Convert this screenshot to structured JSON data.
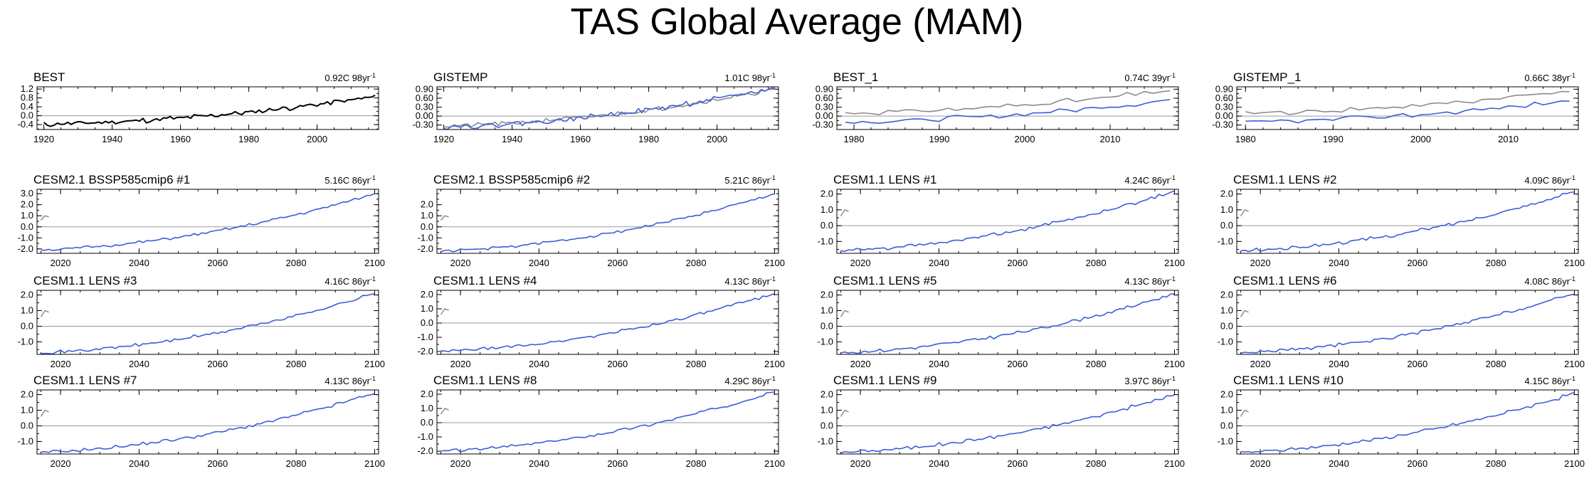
{
  "page": {
    "title": "TAS Global Average (MAM)"
  },
  "colors": {
    "obs": "#000000",
    "model": "#3b5fd8",
    "obsRef": "#8c8c8c",
    "zero": "#999999",
    "axis": "#000000"
  },
  "chart_data": [
    {
      "type": "line",
      "title": "BEST",
      "trend": "0.92C 98yr",
      "trend_unit": "-1",
      "xlim": [
        1918,
        2018
      ],
      "ylim": [
        -0.62,
        1.3
      ],
      "xticks": [
        1920,
        1940,
        1960,
        1980,
        2000
      ],
      "yticks": [
        -0.4,
        0.0,
        0.4,
        0.8,
        1.2
      ],
      "ytick_labels": [
        "-0.4",
        "0.0",
        "0.4",
        "0.8",
        "1.2"
      ],
      "series": [
        {
          "name": "BEST",
          "color": "#000000",
          "x_start": 1920,
          "x_end": 2017,
          "y_start": -0.38,
          "y_end": 0.86,
          "seed": 11,
          "noise": 0.09
        }
      ]
    },
    {
      "type": "line",
      "title": "GISTEMP",
      "trend": "1.01C 98yr",
      "trend_unit": "-1",
      "xlim": [
        1918,
        2018
      ],
      "ylim": [
        -0.45,
        0.98
      ],
      "xticks": [
        1920,
        1940,
        1960,
        1980,
        2000
      ],
      "yticks": [
        -0.3,
        0.0,
        0.3,
        0.6,
        0.9
      ],
      "ytick_labels": [
        "-0.30",
        "0.00",
        "0.30",
        "0.60",
        "0.90"
      ],
      "series": [
        {
          "name": "BEST",
          "color": "#8c8c8c",
          "x_start": 1920,
          "x_end": 2017,
          "y_start": -0.33,
          "y_end": 0.9,
          "seed": 21,
          "noise": 0.06
        },
        {
          "name": "GISTEMP",
          "color": "#3b5fd8",
          "x_start": 1920,
          "x_end": 2017,
          "y_start": -0.36,
          "y_end": 0.95,
          "seed": 22,
          "noise": 0.07
        }
      ]
    },
    {
      "type": "line",
      "title": "BEST_1",
      "trend": "0.74C 39yr",
      "trend_unit": "-1",
      "xlim": [
        1978,
        2018
      ],
      "ylim": [
        -0.45,
        0.98
      ],
      "xticks": [
        1980,
        1990,
        2000,
        2010
      ],
      "yticks": [
        -0.3,
        0.0,
        0.3,
        0.6,
        0.9
      ],
      "ytick_labels": [
        "-0.30",
        "0.00",
        "0.30",
        "0.60",
        "0.90"
      ],
      "series": [
        {
          "name": "BEST",
          "color": "#8c8c8c",
          "x_start": 1979,
          "x_end": 2017,
          "y_start": 0.1,
          "y_end": 0.86,
          "seed": 31,
          "noise": 0.07
        },
        {
          "name": "BEST_1",
          "color": "#3b5fd8",
          "x_start": 1979,
          "x_end": 2017,
          "y_start": -0.2,
          "y_end": 0.55,
          "seed": 32,
          "noise": 0.07
        }
      ]
    },
    {
      "type": "line",
      "title": "GISTEMP_1",
      "trend": "0.66C 38yr",
      "trend_unit": "-1",
      "xlim": [
        1979,
        2018
      ],
      "ylim": [
        -0.45,
        0.98
      ],
      "xticks": [
        1980,
        1990,
        2000,
        2010
      ],
      "yticks": [
        -0.3,
        0.0,
        0.3,
        0.6,
        0.9
      ],
      "ytick_labels": [
        "-0.30",
        "0.00",
        "0.30",
        "0.60",
        "0.90"
      ],
      "series": [
        {
          "name": "GISTEMP",
          "color": "#8c8c8c",
          "x_start": 1980,
          "x_end": 2017,
          "y_start": 0.1,
          "y_end": 0.86,
          "seed": 41,
          "noise": 0.07
        },
        {
          "name": "GISTEMP_1",
          "color": "#3b5fd8",
          "x_start": 1980,
          "x_end": 2017,
          "y_start": -0.2,
          "y_end": 0.52,
          "seed": 42,
          "noise": 0.07
        }
      ]
    },
    {
      "type": "line",
      "title": "CESM2.1 BSSP585cmip6 #1",
      "trend": "5.16C 86yr",
      "trend_unit": "-1",
      "xlim": [
        2014,
        2101
      ],
      "ylim": [
        -2.4,
        3.4
      ],
      "xticks": [
        2020,
        2040,
        2060,
        2080,
        2100
      ],
      "yticks": [
        -2.0,
        -1.0,
        0.0,
        1.0,
        2.0,
        3.0
      ],
      "ytick_labels": [
        "-2.0",
        "-1.0",
        "0.0",
        "1.0",
        "2.0",
        "3.0"
      ],
      "ref_series": [
        {
          "color": "#8c8c8c",
          "x": [
            2015,
            2016,
            2017
          ],
          "y": [
            0.6,
            1.0,
            0.9
          ]
        }
      ],
      "series": [
        {
          "name": "CESM2.1 BSSP585cmip6 #1",
          "color": "#3b5fd8",
          "x_start": 2015,
          "x_end": 2100,
          "y_start": -2.1,
          "y_end": 3.0,
          "seed": 51,
          "noise": 0.1
        }
      ]
    },
    {
      "type": "line",
      "title": "CESM2.1 BSSP585cmip6 #2",
      "trend": "5.21C 86yr",
      "trend_unit": "-1",
      "xlim": [
        2014,
        2101
      ],
      "ylim": [
        -2.4,
        3.4
      ],
      "xticks": [
        2020,
        2040,
        2060,
        2080,
        2100
      ],
      "yticks": [
        -2.0,
        -1.0,
        0.0,
        1.0,
        2.0
      ],
      "ytick_labels": [
        "-2.0",
        "-1.0",
        "0.0",
        "1.0",
        "2.0"
      ],
      "ref_series": [
        {
          "color": "#8c8c8c",
          "x": [
            2015,
            2016,
            2017
          ],
          "y": [
            0.6,
            1.0,
            0.9
          ]
        }
      ],
      "series": [
        {
          "name": "CESM2.1 BSSP585cmip6 #2",
          "color": "#3b5fd8",
          "x_start": 2015,
          "x_end": 2100,
          "y_start": -2.2,
          "y_end": 3.0,
          "seed": 52,
          "noise": 0.1
        }
      ]
    },
    {
      "type": "line",
      "title": "CESM1.1 LENS #1",
      "trend": "4.24C 86yr",
      "trend_unit": "-1",
      "xlim": [
        2014,
        2101
      ],
      "ylim": [
        -1.75,
        2.3
      ],
      "xticks": [
        2020,
        2040,
        2060,
        2080,
        2100
      ],
      "yticks": [
        -1.0,
        0.0,
        1.0,
        2.0
      ],
      "ytick_labels": [
        "-1.0",
        "0.0",
        "1.0",
        "2.0"
      ],
      "ref_series": [
        {
          "color": "#8c8c8c",
          "x": [
            2015,
            2016,
            2017
          ],
          "y": [
            0.6,
            1.0,
            0.9
          ]
        }
      ],
      "series": [
        {
          "name": "CESM1.1 LENS #1",
          "color": "#3b5fd8",
          "x_start": 2015,
          "x_end": 2100,
          "y_start": -1.6,
          "y_end": 2.2,
          "seed": 61,
          "noise": 0.09
        }
      ]
    },
    {
      "type": "line",
      "title": "CESM1.1 LENS #2",
      "trend": "4.09C 86yr",
      "trend_unit": "-1",
      "xlim": [
        2014,
        2101
      ],
      "ylim": [
        -1.75,
        2.3
      ],
      "xticks": [
        2020,
        2040,
        2060,
        2080,
        2100
      ],
      "yticks": [
        -1.0,
        0.0,
        1.0,
        2.0
      ],
      "ytick_labels": [
        "-1.0",
        "0.0",
        "1.0",
        "2.0"
      ],
      "ref_series": [
        {
          "color": "#8c8c8c",
          "x": [
            2015,
            2016,
            2017
          ],
          "y": [
            0.6,
            1.0,
            0.9
          ]
        }
      ],
      "series": [
        {
          "name": "CESM1.1 LENS #2",
          "color": "#3b5fd8",
          "x_start": 2015,
          "x_end": 2100,
          "y_start": -1.6,
          "y_end": 2.15,
          "seed": 62,
          "noise": 0.09
        }
      ]
    },
    {
      "type": "line",
      "title": "CESM1.1 LENS #3",
      "trend": "4.16C 86yr",
      "trend_unit": "-1",
      "xlim": [
        2014,
        2101
      ],
      "ylim": [
        -1.8,
        2.3
      ],
      "xticks": [
        2020,
        2040,
        2060,
        2080,
        2100
      ],
      "yticks": [
        -1.0,
        0.0,
        1.0,
        2.0
      ],
      "ytick_labels": [
        "-1.0",
        "0.0",
        "1.0",
        "2.0"
      ],
      "ref_series": [
        {
          "color": "#8c8c8c",
          "x": [
            2015,
            2016,
            2017
          ],
          "y": [
            0.6,
            1.0,
            0.9
          ]
        }
      ],
      "series": [
        {
          "name": "CESM1.1 LENS #3",
          "color": "#3b5fd8",
          "x_start": 2015,
          "x_end": 2100,
          "y_start": -1.7,
          "y_end": 2.1,
          "seed": 71,
          "noise": 0.09
        }
      ]
    },
    {
      "type": "line",
      "title": "CESM1.1 LENS #4",
      "trend": "4.13C 86yr",
      "trend_unit": "-1",
      "xlim": [
        2014,
        2101
      ],
      "ylim": [
        -2.2,
        2.3
      ],
      "xticks": [
        2020,
        2040,
        2060,
        2080,
        2100
      ],
      "yticks": [
        -2.0,
        -1.0,
        0.0,
        1.0,
        2.0
      ],
      "ytick_labels": [
        "-2.0",
        "-1.0",
        "0.0",
        "1.0",
        "2.0"
      ],
      "ref_series": [
        {
          "color": "#8c8c8c",
          "x": [
            2015,
            2016,
            2017
          ],
          "y": [
            0.6,
            1.0,
            0.9
          ]
        }
      ],
      "series": [
        {
          "name": "CESM1.1 LENS #4",
          "color": "#3b5fd8",
          "x_start": 2015,
          "x_end": 2100,
          "y_start": -2.0,
          "y_end": 2.1,
          "seed": 72,
          "noise": 0.09
        }
      ]
    },
    {
      "type": "line",
      "title": "CESM1.1 LENS #5",
      "trend": "4.13C 86yr",
      "trend_unit": "-1",
      "xlim": [
        2014,
        2101
      ],
      "ylim": [
        -1.8,
        2.3
      ],
      "xticks": [
        2020,
        2040,
        2060,
        2080,
        2100
      ],
      "yticks": [
        -1.0,
        0.0,
        1.0,
        2.0
      ],
      "ytick_labels": [
        "-1.0",
        "0.0",
        "1.0",
        "2.0"
      ],
      "ref_series": [
        {
          "color": "#8c8c8c",
          "x": [
            2015,
            2016,
            2017
          ],
          "y": [
            0.6,
            1.0,
            0.9
          ]
        }
      ],
      "series": [
        {
          "name": "CESM1.1 LENS #5",
          "color": "#3b5fd8",
          "x_start": 2015,
          "x_end": 2100,
          "y_start": -1.7,
          "y_end": 2.1,
          "seed": 81,
          "noise": 0.09
        }
      ]
    },
    {
      "type": "line",
      "title": "CESM1.1 LENS #6",
      "trend": "4.08C 86yr",
      "trend_unit": "-1",
      "xlim": [
        2014,
        2101
      ],
      "ylim": [
        -1.8,
        2.3
      ],
      "xticks": [
        2020,
        2040,
        2060,
        2080,
        2100
      ],
      "yticks": [
        -1.0,
        0.0,
        1.0,
        2.0
      ],
      "ytick_labels": [
        "-1.0",
        "0.0",
        "1.0",
        "2.0"
      ],
      "ref_series": [
        {
          "color": "#8c8c8c",
          "x": [
            2015,
            2016,
            2017
          ],
          "y": [
            0.6,
            1.0,
            0.9
          ]
        }
      ],
      "series": [
        {
          "name": "CESM1.1 LENS #6",
          "color": "#3b5fd8",
          "x_start": 2015,
          "x_end": 2100,
          "y_start": -1.7,
          "y_end": 2.1,
          "seed": 82,
          "noise": 0.09
        }
      ]
    },
    {
      "type": "line",
      "title": "CESM1.1 LENS #7",
      "trend": "4.13C 86yr",
      "trend_unit": "-1",
      "xlim": [
        2014,
        2101
      ],
      "ylim": [
        -1.8,
        2.3
      ],
      "xticks": [
        2020,
        2040,
        2060,
        2080,
        2100
      ],
      "yticks": [
        -1.0,
        0.0,
        1.0,
        2.0
      ],
      "ytick_labels": [
        "-1.0",
        "0.0",
        "1.0",
        "2.0"
      ],
      "ref_series": [
        {
          "color": "#8c8c8c",
          "x": [
            2015,
            2016,
            2017
          ],
          "y": [
            0.6,
            1.0,
            0.9
          ]
        }
      ],
      "series": [
        {
          "name": "CESM1.1 LENS #7",
          "color": "#3b5fd8",
          "x_start": 2015,
          "x_end": 2100,
          "y_start": -1.7,
          "y_end": 2.1,
          "seed": 91,
          "noise": 0.09
        }
      ]
    },
    {
      "type": "line",
      "title": "CESM1.1 LENS #8",
      "trend": "4.29C 86yr",
      "trend_unit": "-1",
      "xlim": [
        2014,
        2101
      ],
      "ylim": [
        -2.2,
        2.3
      ],
      "xticks": [
        2020,
        2040,
        2060,
        2080,
        2100
      ],
      "yticks": [
        -2.0,
        -1.0,
        0.0,
        1.0,
        2.0
      ],
      "ytick_labels": [
        "-2.0",
        "-1.0",
        "0.0",
        "1.0",
        "2.0"
      ],
      "ref_series": [
        {
          "color": "#8c8c8c",
          "x": [
            2015,
            2016,
            2017
          ],
          "y": [
            0.6,
            1.0,
            0.9
          ]
        }
      ],
      "series": [
        {
          "name": "CESM1.1 LENS #8",
          "color": "#3b5fd8",
          "x_start": 2015,
          "x_end": 2100,
          "y_start": -2.0,
          "y_end": 2.2,
          "seed": 92,
          "noise": 0.09
        }
      ]
    },
    {
      "type": "line",
      "title": "CESM1.1 LENS #9",
      "trend": "3.97C 86yr",
      "trend_unit": "-1",
      "xlim": [
        2014,
        2101
      ],
      "ylim": [
        -1.8,
        2.3
      ],
      "xticks": [
        2020,
        2040,
        2060,
        2080,
        2100
      ],
      "yticks": [
        -1.0,
        0.0,
        1.0,
        2.0
      ],
      "ytick_labels": [
        "-1.0",
        "0.0",
        "1.0",
        "2.0"
      ],
      "ref_series": [
        {
          "color": "#8c8c8c",
          "x": [
            2015,
            2016,
            2017
          ],
          "y": [
            0.6,
            1.0,
            0.9
          ]
        }
      ],
      "series": [
        {
          "name": "CESM1.1 LENS #9",
          "color": "#3b5fd8",
          "x_start": 2015,
          "x_end": 2100,
          "y_start": -1.7,
          "y_end": 2.0,
          "seed": 101,
          "noise": 0.09
        }
      ]
    },
    {
      "type": "line",
      "title": "CESM1.1 LENS #10",
      "trend": "4.15C 86yr",
      "trend_unit": "-1",
      "xlim": [
        2014,
        2101
      ],
      "ylim": [
        -1.8,
        2.3
      ],
      "xticks": [
        2020,
        2040,
        2060,
        2080,
        2100
      ],
      "yticks": [
        -1.0,
        0.0,
        1.0,
        2.0
      ],
      "ytick_labels": [
        "-1.0",
        "0.0",
        "1.0",
        "2.0"
      ],
      "ref_series": [
        {
          "color": "#8c8c8c",
          "x": [
            2015,
            2016,
            2017
          ],
          "y": [
            0.6,
            1.0,
            0.9
          ]
        }
      ],
      "series": [
        {
          "name": "CESM1.1 LENS #10",
          "color": "#3b5fd8",
          "x_start": 2015,
          "x_end": 2100,
          "y_start": -1.7,
          "y_end": 2.1,
          "seed": 102,
          "noise": 0.09
        }
      ]
    }
  ]
}
